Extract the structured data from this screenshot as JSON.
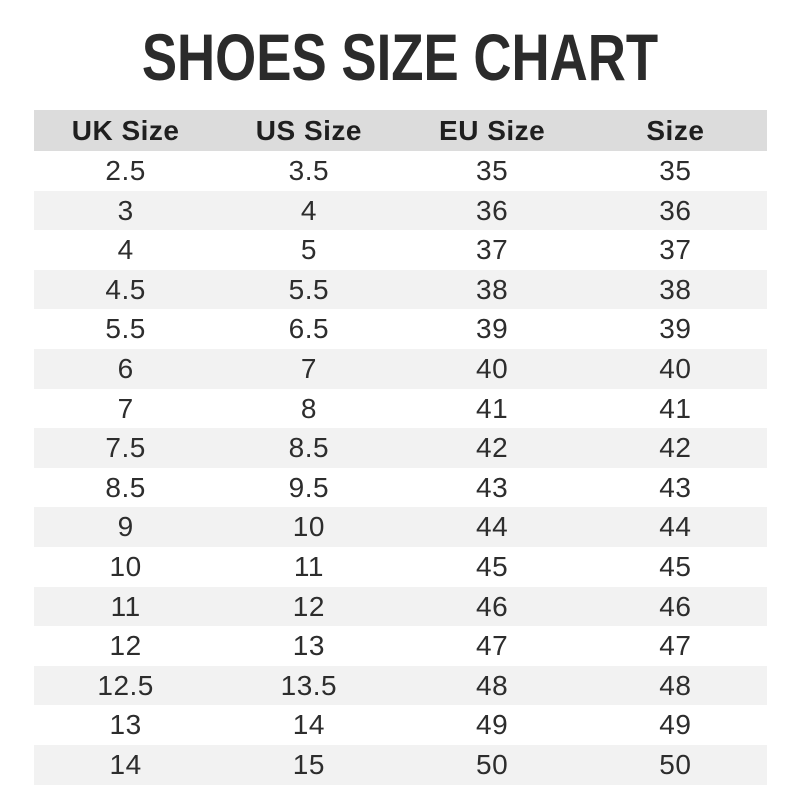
{
  "page": {
    "title": "SHOES SIZE CHART"
  },
  "colors": {
    "title_text": "#2b2b2b",
    "header_bg": "#dcdcdc",
    "header_text": "#1f1f1f",
    "row_bg": "#ffffff",
    "row_alt_bg": "#f2f2f2",
    "cell_text": "#2d2d2d",
    "page_bg": "#ffffff"
  },
  "chart_data": {
    "type": "table",
    "title": "SHOES SIZE CHART",
    "columns": [
      "UK Size",
      "US Size",
      "EU Size",
      "Size"
    ],
    "rows": [
      [
        "2.5",
        "3.5",
        "35",
        "35"
      ],
      [
        "3",
        "4",
        "36",
        "36"
      ],
      [
        "4",
        "5",
        "37",
        "37"
      ],
      [
        "4.5",
        "5.5",
        "38",
        "38"
      ],
      [
        "5.5",
        "6.5",
        "39",
        "39"
      ],
      [
        "6",
        "7",
        "40",
        "40"
      ],
      [
        "7",
        "8",
        "41",
        "41"
      ],
      [
        "7.5",
        "8.5",
        "42",
        "42"
      ],
      [
        "8.5",
        "9.5",
        "43",
        "43"
      ],
      [
        "9",
        "10",
        "44",
        "44"
      ],
      [
        "10",
        "11",
        "45",
        "45"
      ],
      [
        "11",
        "12",
        "46",
        "46"
      ],
      [
        "12",
        "13",
        "47",
        "47"
      ],
      [
        "12.5",
        "13.5",
        "48",
        "48"
      ],
      [
        "13",
        "14",
        "49",
        "49"
      ],
      [
        "14",
        "15",
        "50",
        "50"
      ]
    ],
    "layout": {
      "grid": false,
      "zebra_striping": true,
      "column_alignment": "center"
    }
  }
}
